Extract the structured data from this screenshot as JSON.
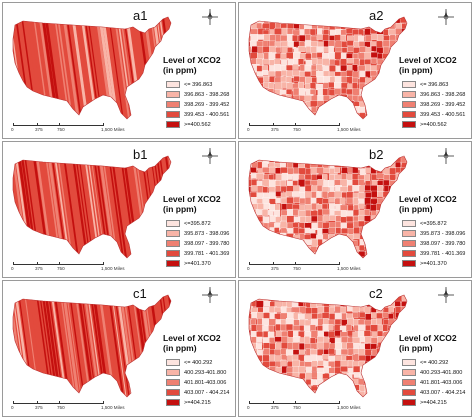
{
  "legend_title_line1": "Level of XCO2",
  "legend_title_line2": "(in ppm)",
  "scale": {
    "labels": [
      "0",
      "375",
      "750",
      "1,500 Miles"
    ]
  },
  "panels": [
    {
      "label": "a1",
      "pattern": "stripes",
      "legend": [
        "<= 396.863",
        "396.863 - 398.268",
        "398.269 - 399.452",
        "399.453 - 400.561",
        ">=400.562"
      ]
    },
    {
      "label": "a2",
      "pattern": "counties",
      "legend": [
        "<= 396.863",
        "396.863 - 398.268",
        "398.269 - 399.452",
        "399.453 - 400.561",
        ">=400.562"
      ]
    },
    {
      "label": "b1",
      "pattern": "stripes",
      "legend": [
        "<=395.872",
        "395.873 - 398.096",
        "398.097 - 399.780",
        "399.781 - 401.369",
        ">=401.370"
      ]
    },
    {
      "label": "b2",
      "pattern": "counties",
      "legend": [
        "<=395.872",
        "395.873 - 398.096",
        "398.097 - 399.780",
        "399.781 - 401.369",
        ">=401.370"
      ]
    },
    {
      "label": "c1",
      "pattern": "stripes",
      "legend": [
        "<= 400.292",
        "400.293-401.800",
        "401.801-403.006",
        "403.007 - 404.214",
        ">=404.215"
      ]
    },
    {
      "label": "c2",
      "pattern": "counties",
      "legend": [
        "<= 400.292",
        "400.293-401.800",
        "401.801-403.006",
        "403.007 - 404.214",
        ">=404.215"
      ]
    }
  ],
  "colors": {
    "class1": "#fde4df",
    "class2": "#f8b4a7",
    "class3": "#ef8072",
    "class4": "#e24a3d",
    "class5": "#c4100f",
    "border": "#9a9a9a"
  },
  "icons": {
    "compass": "north-arrow-icon"
  }
}
